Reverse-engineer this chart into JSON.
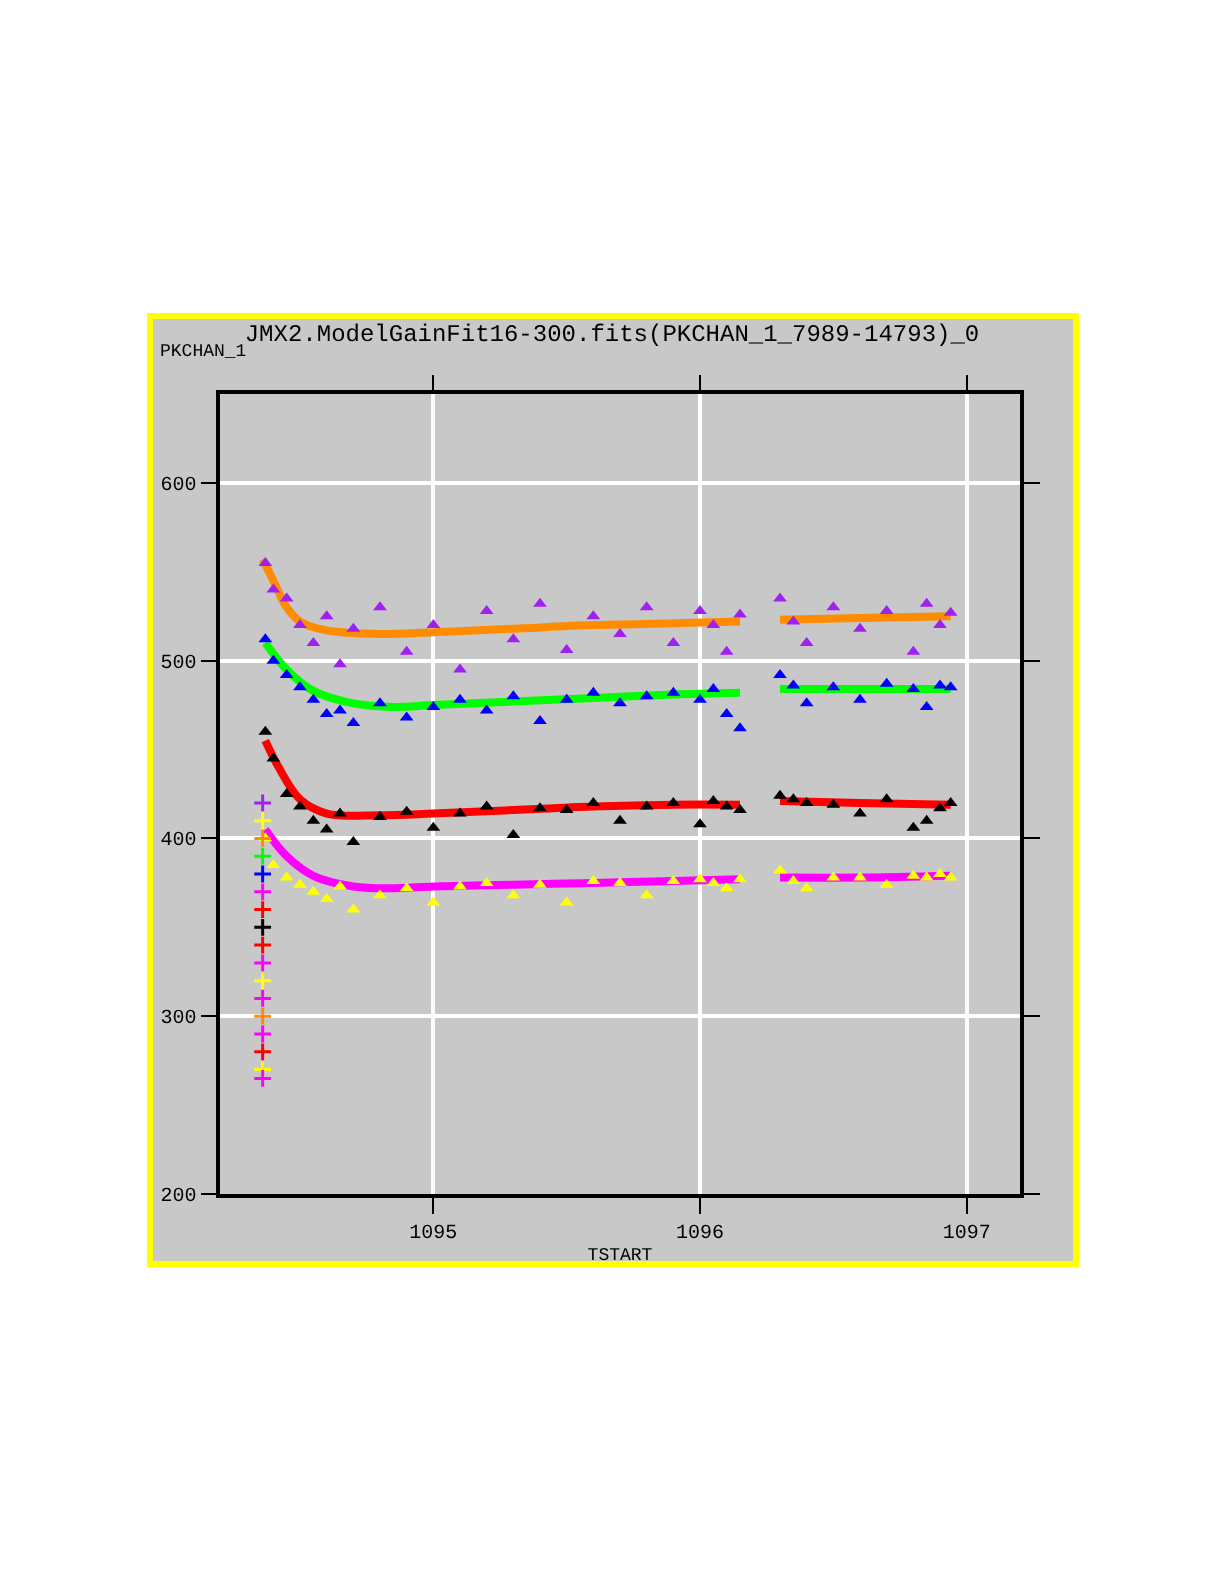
{
  "chart_data": {
    "type": "scatter",
    "title": "JMX2.ModelGainFit16-300.fits(PKCHAN_1_7989-14793)_0",
    "xlabel": "TSTART",
    "ylabel": "PKCHAN_1",
    "xlim": [
      1094.2,
      1097.2
    ],
    "ylim": [
      200,
      650
    ],
    "xticks": [
      1095,
      1096,
      1097
    ],
    "yticks": [
      200,
      300,
      400,
      500,
      600
    ],
    "grid": true,
    "x": [
      1094.37,
      1094.4,
      1094.45,
      1094.5,
      1094.55,
      1094.6,
      1094.65,
      1094.7,
      1094.8,
      1094.9,
      1095.0,
      1095.1,
      1095.2,
      1095.3,
      1095.4,
      1095.5,
      1095.6,
      1095.7,
      1095.8,
      1095.9,
      1096.0,
      1096.05,
      1096.1,
      1096.15,
      1096.3,
      1096.35,
      1096.4,
      1096.5,
      1096.6,
      1096.7,
      1096.8,
      1096.85,
      1096.9,
      1096.94
    ],
    "series": [
      {
        "marker": "triangle",
        "color": "#a020f0",
        "values": [
          555,
          540,
          535,
          520,
          510,
          525,
          498,
          518,
          530,
          505,
          520,
          495,
          528,
          512,
          532,
          506,
          525,
          515,
          530,
          510,
          528,
          520,
          505,
          526,
          535,
          522,
          510,
          530,
          518,
          528,
          505,
          532,
          520,
          527
        ]
      },
      {
        "marker": "triangle",
        "color": "#0000ff",
        "values": [
          512,
          500,
          492,
          485,
          478,
          470,
          472,
          465,
          476,
          468,
          474,
          478,
          472,
          480,
          466,
          478,
          482,
          476,
          480,
          482,
          478,
          484,
          470,
          462,
          492,
          486,
          476,
          485,
          478,
          487,
          484,
          474,
          486,
          485
        ]
      },
      {
        "marker": "triangle",
        "color": "#000000",
        "values": [
          460,
          445,
          425,
          418,
          410,
          405,
          414,
          398,
          412,
          415,
          406,
          414,
          418,
          402,
          417,
          416,
          420,
          410,
          418,
          420,
          408,
          421,
          418,
          416,
          424,
          422,
          420,
          419,
          414,
          422,
          406,
          410,
          417,
          420
        ]
      },
      {
        "marker": "triangle",
        "color": "#ffff00",
        "values": [
          400,
          385,
          378,
          374,
          370,
          366,
          373,
          360,
          368,
          372,
          364,
          373,
          375,
          368,
          374,
          364,
          376,
          375,
          368,
          376,
          377,
          375,
          372,
          377,
          382,
          376,
          372,
          378,
          378,
          374,
          379,
          378,
          380,
          378
        ]
      },
      {
        "type": "line",
        "color": "#ff8c00",
        "x": [
          1094.36,
          1094.4,
          1094.45,
          1094.5,
          1094.6,
          1094.8,
          1095.0,
          1095.3,
          1095.6,
          1095.9,
          1096.15,
          1096.2,
          1096.3,
          1096.6,
          1096.94
        ],
        "values": [
          557,
          545,
          530,
          522,
          517,
          515,
          516,
          518,
          520,
          521,
          522,
          null,
          523,
          524,
          525
        ]
      },
      {
        "type": "line",
        "color": "#00ff00",
        "x": [
          1094.37,
          1094.45,
          1094.55,
          1094.7,
          1094.85,
          1095.0,
          1095.3,
          1095.6,
          1095.9,
          1096.15,
          1096.2,
          1096.3,
          1096.6,
          1096.94
        ],
        "values": [
          510,
          495,
          483,
          476,
          474,
          475,
          477,
          479,
          481,
          482,
          null,
          484,
          484,
          484
        ]
      },
      {
        "type": "line",
        "color": "#ff0000",
        "x": [
          1094.37,
          1094.42,
          1094.5,
          1094.6,
          1094.8,
          1095.0,
          1095.3,
          1095.6,
          1095.9,
          1096.15,
          1096.2,
          1096.3,
          1096.6,
          1096.94
        ],
        "values": [
          455,
          440,
          422,
          414,
          413,
          414,
          416,
          418,
          419,
          419,
          null,
          421,
          420,
          419
        ]
      },
      {
        "type": "line",
        "color": "#ff00ff",
        "x": [
          1094.37,
          1094.45,
          1094.55,
          1094.7,
          1094.85,
          1095.0,
          1095.3,
          1095.6,
          1095.9,
          1096.15,
          1096.2,
          1096.3,
          1096.6,
          1096.94
        ],
        "values": [
          405,
          390,
          379,
          373,
          372,
          373,
          374,
          375,
          376,
          377,
          null,
          378,
          378,
          379
        ]
      },
      {
        "marker": "cross",
        "x": [
          1094.36,
          1094.36,
          1094.36,
          1094.36,
          1094.36,
          1094.36,
          1094.36,
          1094.36,
          1094.36,
          1094.36,
          1094.36,
          1094.36,
          1094.36,
          1094.36,
          1094.36,
          1094.36,
          1094.36
        ],
        "colors": [
          "#a020f0",
          "#ffff00",
          "#ff8c00",
          "#00ff00",
          "#0000ff",
          "#ff00ff",
          "#ff0000",
          "#000000",
          "#ff0000",
          "#ff00ff",
          "#ffff00",
          "#ff00ff",
          "#ff8c00",
          "#ff00ff",
          "#ff0000",
          "#ffff00",
          "#ff00ff"
        ],
        "values": [
          420,
          410,
          400,
          390,
          380,
          370,
          360,
          350,
          340,
          330,
          320,
          310,
          300,
          290,
          280,
          270,
          265
        ]
      }
    ]
  }
}
